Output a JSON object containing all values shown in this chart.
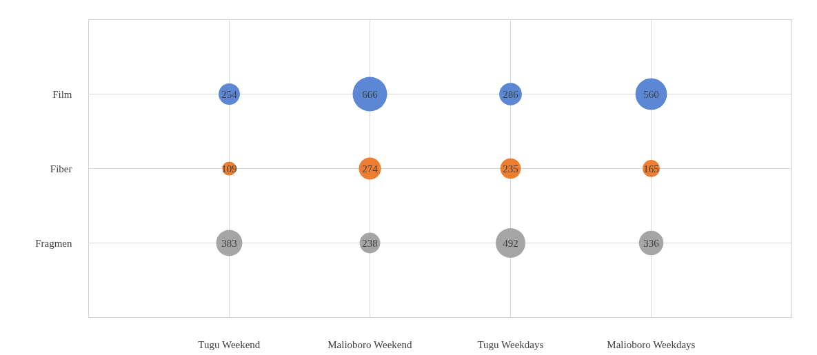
{
  "chart_data": {
    "type": "heatmap",
    "categories": [
      "Tugu Weekend",
      "Malioboro Weekend",
      "Tugu Weekdays",
      "Malioboro Weekdays"
    ],
    "y_categories": [
      "Film",
      "Fiber",
      "Fragmen"
    ],
    "cells": [
      [
        254,
        666,
        286,
        560
      ],
      [
        109,
        274,
        235,
        165
      ],
      [
        383,
        238,
        492,
        336
      ]
    ],
    "colors": [
      "#5b87d4",
      "#ed7d31",
      "#a5a5a5"
    ],
    "data_labels": true,
    "grid": true
  }
}
